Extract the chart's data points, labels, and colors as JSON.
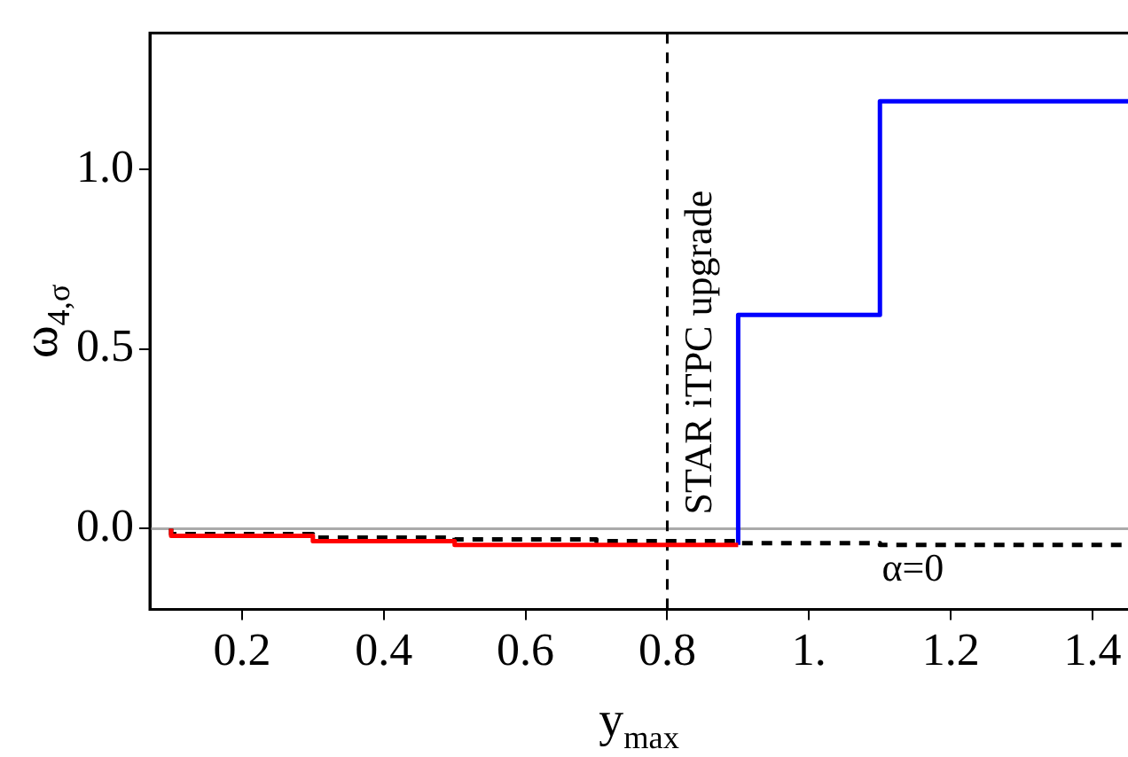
{
  "chart_data": {
    "type": "step",
    "xlabel": "y$_{max}$",
    "ylabel": "ω$_{4,σ}$",
    "series": [
      {
        "color": "#ff0000",
        "x": [
          0.1,
          0.3,
          0.5,
          0.7,
          0.9
        ],
        "values": [
          0,
          -0.02,
          -0.035,
          -0.045,
          -0.045
        ]
      },
      {
        "color": "#0000ff",
        "x": [
          0.9,
          0.9,
          1.1,
          1.3,
          1.45
        ],
        "values": [
          -0.045,
          0.1,
          0.595,
          1.19,
          1.19
        ]
      },
      {
        "color": "#000000",
        "line_style": "dashed",
        "x": [
          0.1,
          0.3,
          0.5,
          0.7,
          0.9,
          1.1,
          1.3,
          1.45
        ],
        "values": [
          0,
          -0.015,
          -0.025,
          -0.03,
          -0.035,
          -0.04,
          -0.045,
          -0.045
        ]
      }
    ],
    "xlim": [
      0.07,
      1.45
    ],
    "xticks": [
      0.2,
      0.4,
      0.6,
      0.8,
      {
        "value": 1,
        "label": "1."
      },
      1.2,
      1.4
    ],
    "ylim": [
      -0.225,
      1.38
    ],
    "yticks": [
      {
        "value": 0,
        "label": "0.0"
      },
      0.5,
      {
        "value": 1,
        "label": "1.0"
      }
    ],
    "ref_lines": [
      {
        "axis": "y",
        "value": 0,
        "color": "#aaaaaa"
      },
      {
        "axis": "x",
        "value": 0.8,
        "label": "STAR iTPC upgrade",
        "color": "#000000",
        "line_style": "dashed"
      }
    ],
    "annotations": [
      "α=0"
    ],
    "grid": false,
    "legend": false
  }
}
